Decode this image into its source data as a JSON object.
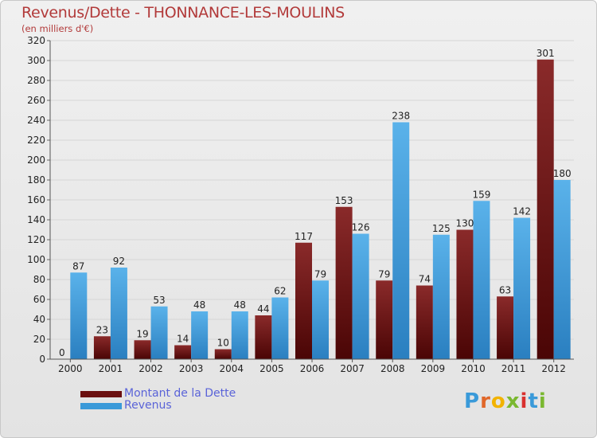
{
  "header": {
    "title": "Revenus/Dette - THONNANCE-LES-MOULINS",
    "subtitle": "(en milliers d'€)"
  },
  "legend": {
    "items": [
      {
        "label": "Montant de la Dette",
        "color": "#6b0f0f"
      },
      {
        "label": "Revenus",
        "color": "#3a9ad9"
      }
    ]
  },
  "brand": {
    "text": "Proxiti"
  },
  "chart_data": {
    "type": "bar",
    "categories": [
      "2000",
      "2001",
      "2002",
      "2003",
      "2004",
      "2005",
      "2006",
      "2007",
      "2008",
      "2009",
      "2010",
      "2011",
      "2012"
    ],
    "series": [
      {
        "name": "Montant de la Dette",
        "color": "#6b0f0f",
        "values": [
          0,
          23,
          19,
          14,
          10,
          44,
          117,
          153,
          79,
          74,
          130,
          63,
          301
        ]
      },
      {
        "name": "Revenus",
        "color": "#3a9ad9",
        "values": [
          87,
          92,
          53,
          48,
          48,
          62,
          79,
          126,
          238,
          125,
          159,
          142,
          180
        ]
      }
    ],
    "ylim": [
      0,
      320
    ],
    "yticks": [
      0,
      20,
      40,
      60,
      80,
      100,
      120,
      140,
      160,
      180,
      200,
      220,
      240,
      260,
      280,
      300,
      320
    ],
    "grid": true,
    "legend_position": "bottom-left"
  }
}
